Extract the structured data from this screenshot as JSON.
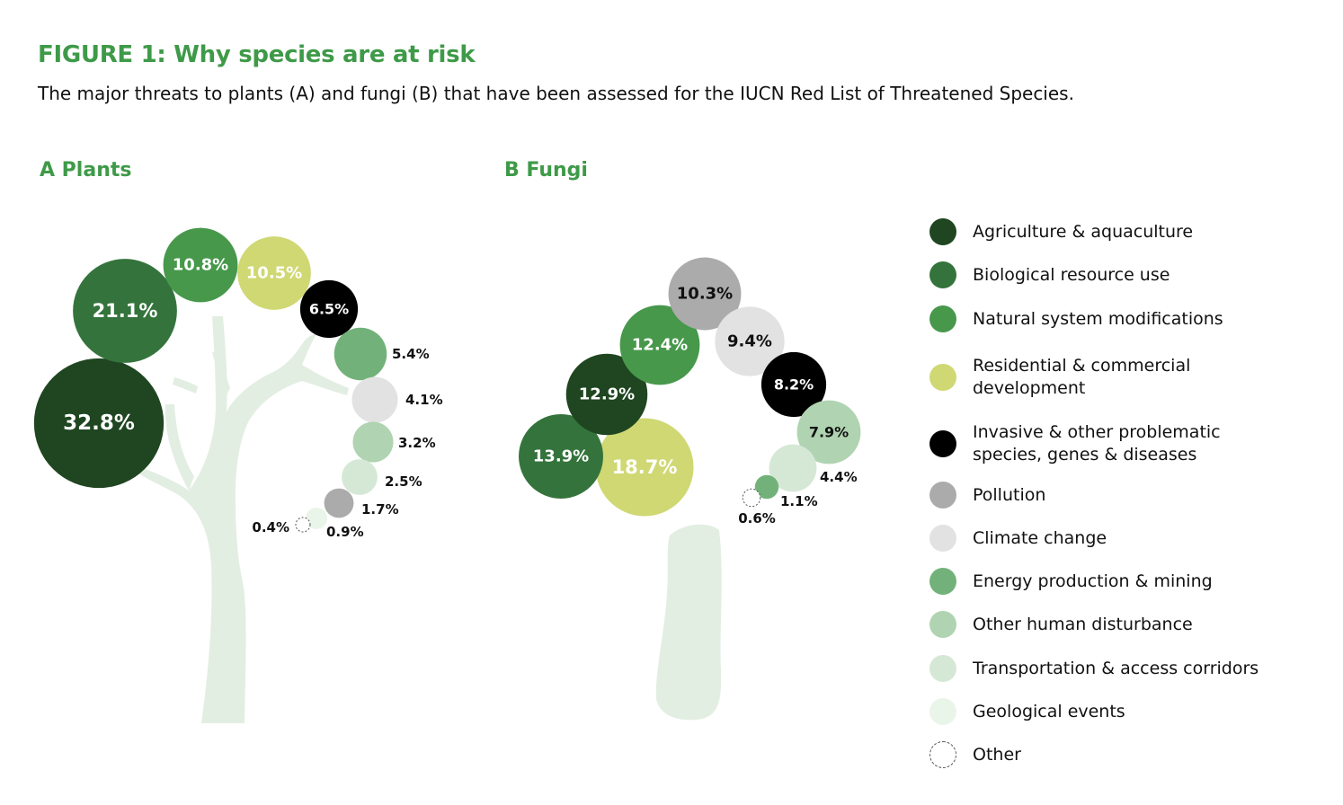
{
  "figure": {
    "title": "FIGURE 1: Why species are at risk",
    "subtitle": "The major threats to plants (A) and fungi (B) that have been assessed for the IUCN Red List of Threatened Species."
  },
  "colors": {
    "title_green": "#3e9a48",
    "tree": "#e3eee3"
  },
  "legend": {
    "items": [
      {
        "key": "agriculture",
        "label": "Agriculture & aquaculture",
        "color": "#1f4620"
      },
      {
        "key": "biological",
        "label": "Biological resource use",
        "color": "#34743c"
      },
      {
        "key": "natural",
        "label": "Natural system modifications",
        "color": "#47984b"
      },
      {
        "key": "residential",
        "label": "Residential & commercial development",
        "color": "#cfd873"
      },
      {
        "key": "invasive",
        "label": "Invasive & other problematic species, genes & diseases",
        "color": "#000000"
      },
      {
        "key": "pollution",
        "label": "Pollution",
        "color": "#ababab"
      },
      {
        "key": "climate",
        "label": "Climate change",
        "color": "#e2e2e2"
      },
      {
        "key": "energy",
        "label": "Energy production & mining",
        "color": "#72b27a"
      },
      {
        "key": "disturbance",
        "label": "Other human disturbance",
        "color": "#b0d4b1"
      },
      {
        "key": "transport",
        "label": "Transportation & access corridors",
        "color": "#d5e8d5"
      },
      {
        "key": "geological",
        "label": "Geological events",
        "color": "#eaf5ea"
      },
      {
        "key": "other",
        "label": "Other",
        "color": "#ffffff"
      }
    ]
  },
  "chart_data": [
    {
      "type": "bubble",
      "title": "A Plants",
      "unit": "%",
      "series": [
        {
          "key": "agriculture",
          "label": "32.8%",
          "value": 32.8
        },
        {
          "key": "biological",
          "label": "21.1%",
          "value": 21.1
        },
        {
          "key": "natural",
          "label": "10.8%",
          "value": 10.8
        },
        {
          "key": "residential",
          "label": "10.5%",
          "value": 10.5
        },
        {
          "key": "invasive",
          "label": "6.5%",
          "value": 6.5
        },
        {
          "key": "energy",
          "label": "5.4%",
          "value": 5.4
        },
        {
          "key": "climate",
          "label": "4.1%",
          "value": 4.1
        },
        {
          "key": "disturbance",
          "label": "3.2%",
          "value": 3.2
        },
        {
          "key": "transport",
          "label": "2.5%",
          "value": 2.5
        },
        {
          "key": "pollution",
          "label": "1.7%",
          "value": 1.7
        },
        {
          "key": "geological",
          "label": "0.9%",
          "value": 0.9
        },
        {
          "key": "other",
          "label": "0.4%",
          "value": 0.4
        }
      ]
    },
    {
      "type": "bubble",
      "title": "B Fungi",
      "unit": "%",
      "series": [
        {
          "key": "residential",
          "label": "18.7%",
          "value": 18.7
        },
        {
          "key": "biological",
          "label": "13.9%",
          "value": 13.9
        },
        {
          "key": "agriculture",
          "label": "12.9%",
          "value": 12.9
        },
        {
          "key": "natural",
          "label": "12.4%",
          "value": 12.4
        },
        {
          "key": "pollution",
          "label": "10.3%",
          "value": 10.3
        },
        {
          "key": "climate",
          "label": "9.4%",
          "value": 9.4
        },
        {
          "key": "invasive",
          "label": "8.2%",
          "value": 8.2
        },
        {
          "key": "disturbance",
          "label": "7.9%",
          "value": 7.9
        },
        {
          "key": "transport",
          "label": "4.4%",
          "value": 4.4
        },
        {
          "key": "energy",
          "label": "1.1%",
          "value": 1.1
        },
        {
          "key": "other",
          "label": "0.6%",
          "value": 0.6
        }
      ]
    }
  ]
}
